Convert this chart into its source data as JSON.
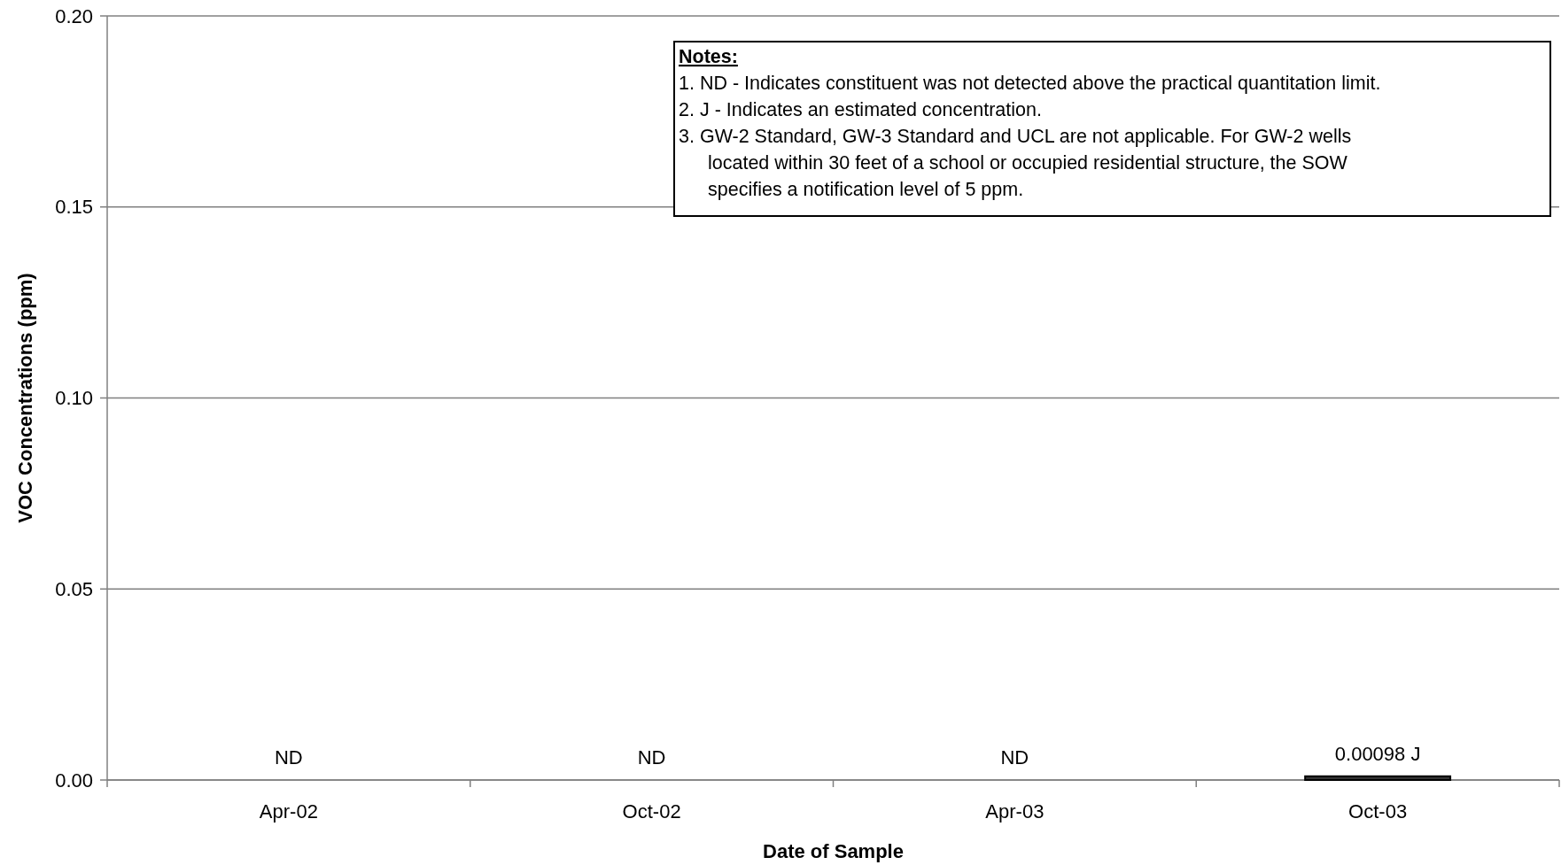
{
  "chart_data": {
    "type": "bar",
    "xlabel": "Date of Sample",
    "ylabel": "VOC Concentrations (ppm)",
    "categories": [
      "Apr-02",
      "Oct-02",
      "Apr-03",
      "Oct-03"
    ],
    "values": [
      null,
      null,
      null,
      0.00098
    ],
    "value_labels": [
      "ND",
      "ND",
      "ND",
      "0.00098 J"
    ],
    "color": "#333333",
    "ylim": [
      0,
      0.2
    ],
    "yticks": [
      {
        "value": 0,
        "label": "0.00"
      },
      {
        "value": 0.05,
        "label": "0.05"
      },
      {
        "value": 0.1,
        "label": "0.10"
      },
      {
        "value": 0.15,
        "label": "0.15"
      },
      {
        "value": 0.2,
        "label": "0.20"
      }
    ],
    "grid": "y",
    "annotations": [
      "Notes:",
      "1.  ND - Indicates constituent was not detected above the practical quantitation limit.",
      "2.  J - Indicates an estimated concentration.",
      "3.  GW-2 Standard, GW-3 Standard and UCL are not applicable. For GW-2 wells",
      "located within 30 feet of a school or occupied residential structure, the SOW",
      "specifies a notification level of 5 ppm."
    ]
  }
}
